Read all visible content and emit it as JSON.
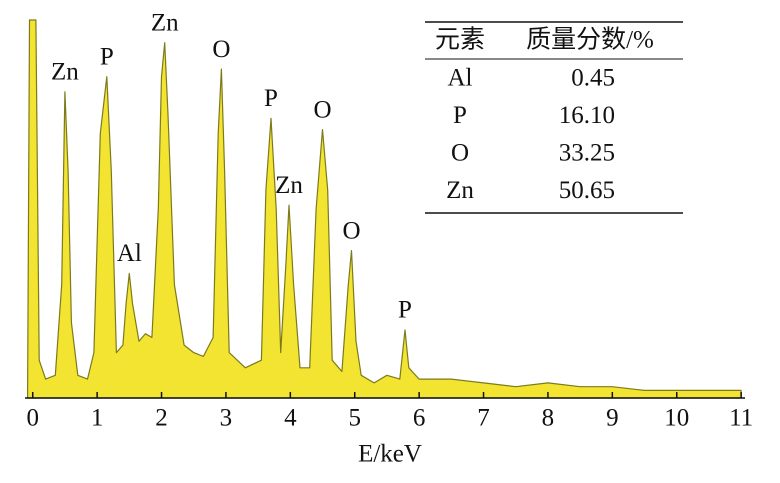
{
  "chart_data": {
    "type": "area",
    "xlabel": "E/keV",
    "x": [
      -0.08,
      -0.05,
      0.05,
      0.1,
      0.2,
      0.35,
      0.45,
      0.5,
      0.55,
      0.6,
      0.7,
      0.85,
      0.95,
      1.05,
      1.15,
      1.22,
      1.3,
      1.4,
      1.45,
      1.5,
      1.55,
      1.65,
      1.75,
      1.85,
      1.95,
      2.0,
      2.05,
      2.1,
      2.2,
      2.35,
      2.5,
      2.65,
      2.8,
      2.88,
      2.93,
      2.98,
      3.05,
      3.3,
      3.55,
      3.62,
      3.7,
      3.78,
      3.85,
      3.93,
      3.98,
      4.05,
      4.15,
      4.3,
      4.4,
      4.5,
      4.58,
      4.65,
      4.8,
      4.9,
      4.95,
      5.02,
      5.1,
      5.3,
      5.5,
      5.7,
      5.78,
      5.84,
      6.0,
      6.5,
      7.0,
      7.5,
      8.0,
      8.5,
      9.0,
      9.5,
      10.0,
      10.5,
      11.0
    ],
    "values": [
      2,
      100,
      100,
      10,
      5,
      6,
      30,
      81,
      60,
      20,
      6,
      5,
      12,
      70,
      85,
      60,
      12,
      14,
      25,
      33,
      25,
      15,
      17,
      16,
      50,
      85,
      94,
      75,
      30,
      14,
      12,
      11,
      16,
      70,
      87,
      60,
      12,
      8,
      10,
      55,
      74,
      50,
      12,
      35,
      51,
      30,
      8,
      8,
      50,
      71,
      55,
      10,
      7,
      30,
      39,
      15,
      6,
      4,
      6,
      5,
      18,
      8,
      5,
      5,
      4,
      3,
      4,
      3,
      3,
      2,
      2,
      2,
      2
    ],
    "color": "#f2e431",
    "xlim": [
      -0.12,
      11.06
    ],
    "xticks": [
      0,
      1,
      2,
      3,
      4,
      5,
      6,
      7,
      8,
      9,
      10,
      11
    ],
    "ylim": [
      0,
      100
    ],
    "annotations": [
      {
        "text": "Zn",
        "x": 0.5
      },
      {
        "text": "P",
        "x": 1.15
      },
      {
        "text": "Al",
        "x": 1.5
      },
      {
        "text": "Zn",
        "x": 2.05
      },
      {
        "text": "O",
        "x": 2.93
      },
      {
        "text": "P",
        "x": 3.7
      },
      {
        "text": "Zn",
        "x": 3.98
      },
      {
        "text": "O",
        "x": 4.5
      },
      {
        "text": "O",
        "x": 4.95
      },
      {
        "text": "P",
        "x": 5.78
      }
    ],
    "table": {
      "header": [
        "元素",
        "质量分数/%"
      ],
      "rows": [
        [
          "Al",
          "0.45"
        ],
        [
          "P",
          "16.10"
        ],
        [
          "O",
          "33.25"
        ],
        [
          "Zn",
          "50.65"
        ]
      ]
    }
  }
}
